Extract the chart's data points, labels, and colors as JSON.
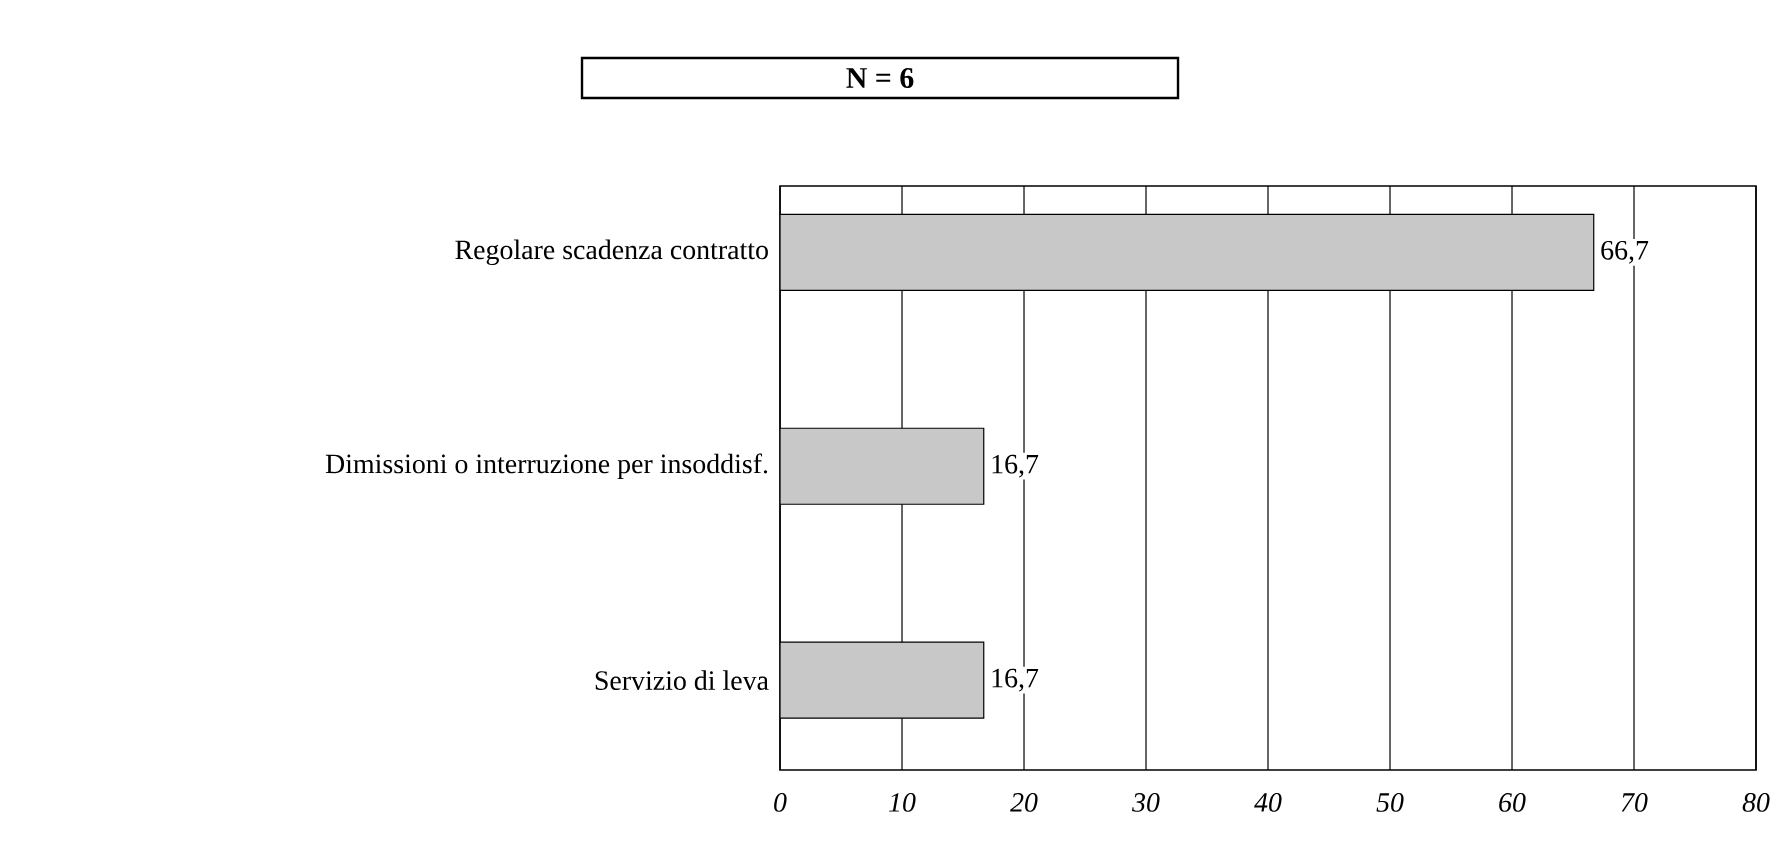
{
  "chart_data": {
    "type": "bar",
    "orientation": "horizontal",
    "title": "N = 6",
    "categories": [
      "Regolare scadenza contratto",
      "Dimissioni o interruzione per insoddisf.",
      "Servizio di leva"
    ],
    "values": [
      66.7,
      16.7,
      16.7
    ],
    "value_labels": [
      "66,7",
      "16,7",
      "16,7"
    ],
    "color": "#c8c8c8",
    "xlim": [
      0,
      80
    ],
    "xticks": [
      0,
      10,
      20,
      30,
      40,
      50,
      60,
      70,
      80
    ],
    "grid": "x"
  }
}
